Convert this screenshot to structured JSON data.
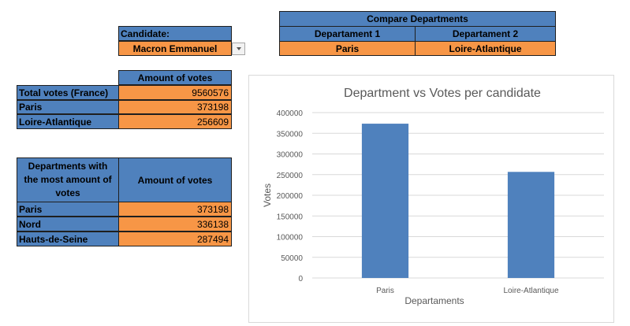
{
  "candidate": {
    "label": "Candidate:",
    "value": "Macron Emmanuel"
  },
  "compare": {
    "title": "Compare Departments",
    "header1": "Departament 1",
    "header2": "Departament 2",
    "value1": "Paris",
    "value2": "Loire-Atlantique"
  },
  "votes_table": {
    "header": "Amount of votes",
    "rows": [
      {
        "label": "Total votes (France)",
        "value": "9560576"
      },
      {
        "label": "Paris",
        "value": "373198"
      },
      {
        "label": "Loire-Atlantique",
        "value": "256609"
      }
    ]
  },
  "top_table": {
    "header_left": "Departments with the most amount of votes",
    "header_right": "Amount of votes",
    "rows": [
      {
        "label": "Paris",
        "value": "373198"
      },
      {
        "label": "Nord",
        "value": "336138"
      },
      {
        "label": "Hauts-de-Seine",
        "value": "287494"
      }
    ]
  },
  "colors": {
    "header_blue": "#4f81bd",
    "cell_orange": "#f79646",
    "bar_blue": "#4f81bd"
  },
  "chart_data": {
    "type": "bar",
    "title": "Department vs Votes per candidate",
    "xlabel": "Departaments",
    "ylabel": "Votes",
    "categories": [
      "Paris",
      "Loire-Atlantique"
    ],
    "values": [
      373198,
      256609
    ],
    "ylim": [
      0,
      400000
    ],
    "yticks": [
      "0",
      "50000",
      "100000",
      "150000",
      "200000",
      "250000",
      "300000",
      "350000",
      "400000"
    ],
    "grid": true,
    "legend": "none"
  }
}
